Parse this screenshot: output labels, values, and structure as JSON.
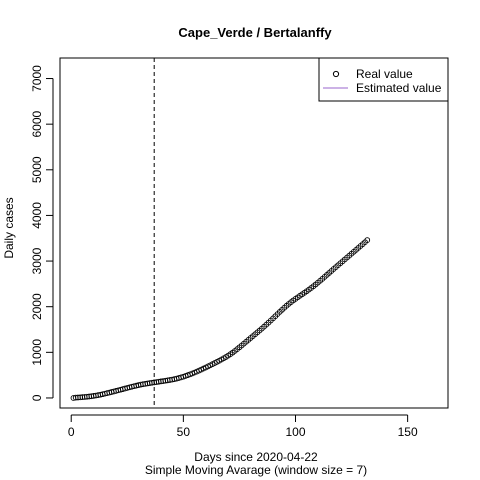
{
  "chart_data": {
    "type": "scatter",
    "title": "Cape_Verde / Bertalanffy",
    "xlabel": "Days since 2020-04-22",
    "subtitle": "Simple Moving Avarage (window size = 7)",
    "ylabel": "Daily cases",
    "xlim": [
      -5,
      168
    ],
    "ylim": [
      -220,
      7450
    ],
    "xticks": [
      0,
      50,
      100,
      150
    ],
    "yticks": [
      0,
      1000,
      2000,
      3000,
      4000,
      5000,
      6000,
      7000
    ],
    "vline_x": 37,
    "legend_position": "top-right",
    "legend": [
      {
        "label": "Real value",
        "marker": "circle"
      },
      {
        "label": "Estimated value",
        "marker": "line",
        "color": "#9966cc"
      }
    ],
    "series": [
      {
        "name": "Real value",
        "points": [
          [
            1,
            0
          ],
          [
            2,
            7
          ],
          [
            3,
            10
          ],
          [
            4,
            14
          ],
          [
            5,
            18
          ],
          [
            6,
            22
          ],
          [
            7,
            27
          ],
          [
            8,
            32
          ],
          [
            9,
            38
          ],
          [
            10,
            45
          ],
          [
            11,
            53
          ],
          [
            12,
            62
          ],
          [
            13,
            72
          ],
          [
            14,
            83
          ],
          [
            15,
            94
          ],
          [
            16,
            106
          ],
          [
            17,
            118
          ],
          [
            18,
            130
          ],
          [
            19,
            142
          ],
          [
            20,
            155
          ],
          [
            21,
            168
          ],
          [
            22,
            181
          ],
          [
            23,
            194
          ],
          [
            24,
            207
          ],
          [
            25,
            220
          ],
          [
            26,
            233
          ],
          [
            27,
            246
          ],
          [
            28,
            258
          ],
          [
            29,
            270
          ],
          [
            30,
            281
          ],
          [
            31,
            292
          ],
          [
            32,
            301
          ],
          [
            33,
            310
          ],
          [
            34,
            318
          ],
          [
            35,
            326
          ],
          [
            36,
            334
          ],
          [
            37,
            341
          ],
          [
            38,
            348
          ],
          [
            39,
            356
          ],
          [
            40,
            363
          ],
          [
            41,
            370
          ],
          [
            42,
            378
          ],
          [
            43,
            386
          ],
          [
            44,
            394
          ],
          [
            45,
            403
          ],
          [
            46,
            413
          ],
          [
            47,
            424
          ],
          [
            48,
            437
          ],
          [
            49,
            451
          ],
          [
            50,
            466
          ],
          [
            51,
            483
          ],
          [
            52,
            500
          ],
          [
            53,
            518
          ],
          [
            54,
            537
          ],
          [
            55,
            557
          ],
          [
            56,
            578
          ],
          [
            57,
            600
          ],
          [
            58,
            622
          ],
          [
            59,
            645
          ],
          [
            60,
            668
          ],
          [
            61,
            692
          ],
          [
            62,
            716
          ],
          [
            63,
            741
          ],
          [
            64,
            766
          ],
          [
            65,
            791
          ],
          [
            66,
            816
          ],
          [
            67,
            843
          ],
          [
            68,
            870
          ],
          [
            69,
            898
          ],
          [
            70,
            928
          ],
          [
            71,
            960
          ],
          [
            72,
            995
          ],
          [
            73,
            1031
          ],
          [
            74,
            1070
          ],
          [
            75,
            1110
          ],
          [
            76,
            1150
          ],
          [
            77,
            1191
          ],
          [
            78,
            1232
          ],
          [
            79,
            1273
          ],
          [
            80,
            1314
          ],
          [
            81,
            1355
          ],
          [
            82,
            1396
          ],
          [
            83,
            1437
          ],
          [
            84,
            1478
          ],
          [
            85,
            1520
          ],
          [
            86,
            1563
          ],
          [
            87,
            1607
          ],
          [
            88,
            1652
          ],
          [
            89,
            1698
          ],
          [
            90,
            1745
          ],
          [
            91,
            1792
          ],
          [
            92,
            1839
          ],
          [
            93,
            1886
          ],
          [
            94,
            1932
          ],
          [
            95,
            1977
          ],
          [
            96,
            2020
          ],
          [
            97,
            2061
          ],
          [
            98,
            2100
          ],
          [
            99,
            2137
          ],
          [
            100,
            2172
          ],
          [
            101,
            2206
          ],
          [
            102,
            2240
          ],
          [
            103,
            2273
          ],
          [
            104,
            2306
          ],
          [
            105,
            2340
          ],
          [
            106,
            2375
          ],
          [
            107,
            2411
          ],
          [
            108,
            2449
          ],
          [
            109,
            2488
          ],
          [
            110,
            2528
          ],
          [
            111,
            2569
          ],
          [
            112,
            2611
          ],
          [
            113,
            2654
          ],
          [
            114,
            2697
          ],
          [
            115,
            2740
          ],
          [
            116,
            2783
          ],
          [
            117,
            2826
          ],
          [
            118,
            2868
          ],
          [
            119,
            2910
          ],
          [
            120,
            2952
          ],
          [
            121,
            2994
          ],
          [
            122,
            3036
          ],
          [
            123,
            3078
          ],
          [
            124,
            3120
          ],
          [
            125,
            3162
          ],
          [
            126,
            3204
          ],
          [
            127,
            3246
          ],
          [
            128,
            3288
          ],
          [
            129,
            3330
          ],
          [
            130,
            3372
          ],
          [
            131,
            3414
          ],
          [
            132,
            3460
          ]
        ]
      }
    ]
  }
}
